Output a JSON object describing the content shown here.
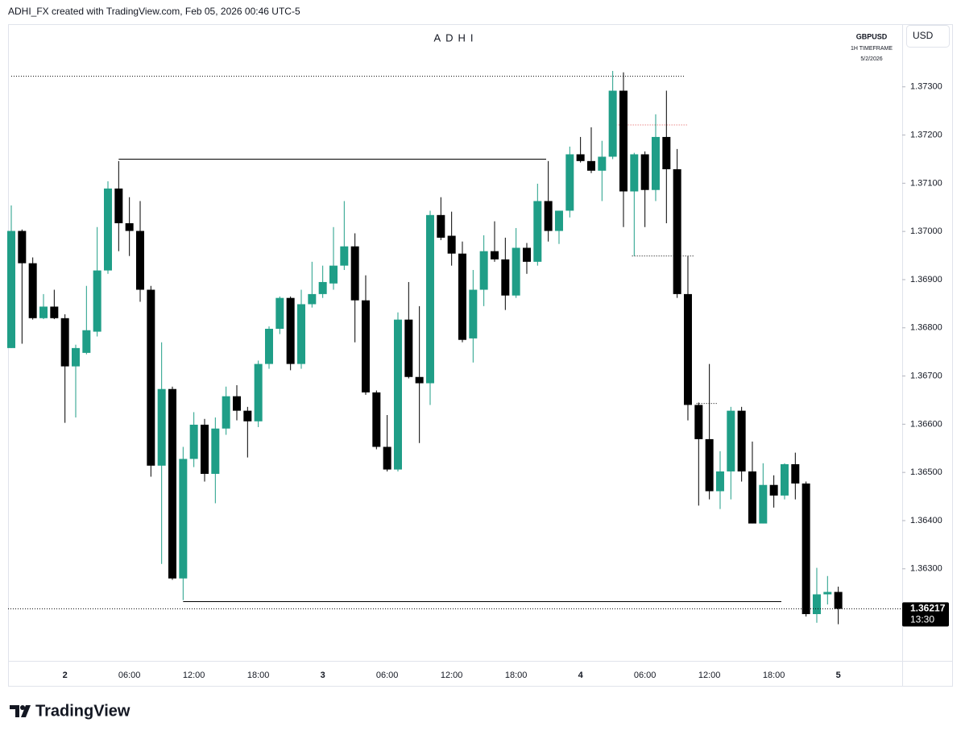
{
  "header": {
    "credit": "ADHI_FX created with TradingView.com, Feb 05, 2026 00:46 UTC-5"
  },
  "footer": {
    "logo": "TradingView"
  },
  "chart_data": {
    "type": "candlestick",
    "title": "ADHI",
    "symbol": "GBPUSD",
    "timeframe": "1H TIMEFRAME",
    "date": "5/2/2026",
    "currency": "USD",
    "countdown": "13:30",
    "up_color": "#1f9e87",
    "down_color": "#000000",
    "categories": [
      null,
      null,
      null,
      null,
      null,
      "2",
      null,
      null,
      null,
      null,
      null,
      "06:00",
      null,
      null,
      null,
      null,
      null,
      "12:00",
      null,
      null,
      null,
      null,
      null,
      "18:00",
      null,
      null,
      null,
      null,
      null,
      "3",
      null,
      null,
      null,
      null,
      null,
      "06:00",
      null,
      null,
      null,
      null,
      null,
      "12:00",
      null,
      null,
      null,
      null,
      null,
      "18:00",
      null,
      null,
      null,
      null,
      null,
      "4",
      null,
      null,
      null,
      null,
      null,
      "06:00",
      null,
      null,
      null,
      null,
      null,
      "12:00",
      null,
      null,
      null,
      null,
      null,
      "18:00",
      null,
      null,
      null,
      null,
      null,
      "5"
    ],
    "open": [
      1.36758,
      1.37001,
      1.36934,
      1.3682,
      1.36844,
      1.3682,
      1.3672,
      1.36748,
      1.36792,
      1.36919,
      1.37089,
      1.37017,
      1.37001,
      1.36879,
      1.36514,
      1.36673,
      1.3628,
      1.36528,
      1.36599,
      1.36497,
      1.36591,
      1.36658,
      1.36628,
      1.36606,
      1.36725,
      1.36798,
      1.36862,
      1.36725,
      1.36849,
      1.3687,
      1.36892,
      1.36929,
      1.36969,
      1.36857,
      1.36666,
      1.36553,
      1.36506,
      1.36817,
      1.36698,
      1.36685,
      1.37034,
      1.36991,
      1.36954,
      1.36778,
      1.36879,
      1.36959,
      1.36942,
      1.36867,
      1.36966,
      1.36937,
      1.37063,
      1.37001,
      1.37043,
      1.3716,
      1.37146,
      1.37126,
      1.37155,
      1.37292,
      1.37083,
      1.3716,
      1.37086,
      1.37196,
      1.37129,
      1.3687,
      1.3664,
      1.36569,
      1.36461,
      1.36502,
      1.36628,
      1.36502,
      1.36394,
      1.36474,
      1.36452,
      1.36517,
      1.36477,
      1.36206,
      1.36247,
      1.36252
    ],
    "high": [
      1.37054,
      1.37004,
      1.36946,
      1.3687,
      1.36879,
      1.36828,
      1.36765,
      1.36887,
      1.37009,
      1.37104,
      1.37146,
      1.37071,
      1.37063,
      1.36887,
      1.3677,
      1.36678,
      1.36553,
      1.36625,
      1.36611,
      1.36614,
      1.36678,
      1.36681,
      1.36636,
      1.36732,
      1.36803,
      1.36865,
      1.36865,
      1.36879,
      1.36937,
      1.36929,
      1.37009,
      1.37063,
      1.36996,
      1.36909,
      1.3667,
      1.36619,
      1.36832,
      1.36895,
      1.36845,
      1.37043,
      1.37071,
      1.37041,
      1.36979,
      1.3692,
      1.36992,
      1.37021,
      1.36987,
      1.37007,
      1.36976,
      1.37099,
      1.37146,
      1.37043,
      1.37176,
      1.37196,
      1.37216,
      1.37188,
      1.37333,
      1.3733,
      1.37163,
      1.37166,
      1.37243,
      1.37292,
      1.37171,
      1.36949,
      1.36645,
      1.36725,
      1.36544,
      1.36636,
      1.36636,
      1.36564,
      1.36519,
      1.36494,
      1.36519,
      1.36541,
      1.36481,
      1.36302,
      1.36285,
      1.36263
    ],
    "low": [
      1.36758,
      1.36767,
      1.36817,
      1.36818,
      1.36818,
      1.36603,
      1.36614,
      1.36745,
      1.36782,
      1.36912,
      1.36959,
      1.36949,
      1.36854,
      1.36491,
      1.3631,
      1.36277,
      1.36235,
      1.36511,
      1.36481,
      1.36436,
      1.36578,
      1.36608,
      1.36531,
      1.36594,
      1.36715,
      1.36787,
      1.36712,
      1.36715,
      1.36842,
      1.36862,
      1.36879,
      1.3692,
      1.3677,
      1.36661,
      1.36548,
      1.36502,
      1.36502,
      1.36695,
      1.36561,
      1.3664,
      1.36982,
      1.36929,
      1.3677,
      1.36728,
      1.36845,
      1.36937,
      1.36837,
      1.36862,
      1.36912,
      1.36929,
      1.36979,
      1.36974,
      1.37029,
      1.37143,
      1.37121,
      1.37063,
      1.3715,
      1.37009,
      1.36949,
      1.37009,
      1.37063,
      1.37017,
      1.36862,
      1.36608,
      1.36431,
      1.36444,
      1.36424,
      1.36444,
      1.36481,
      1.36394,
      1.36394,
      1.36427,
      1.36444,
      1.36444,
      1.36201,
      1.36188,
      1.36226,
      1.36185
    ],
    "close": [
      1.37001,
      1.36934,
      1.3682,
      1.36844,
      1.3682,
      1.3672,
      1.36758,
      1.36795,
      1.36919,
      1.37089,
      1.37017,
      1.37001,
      1.36879,
      1.36514,
      1.36673,
      1.3628,
      1.36528,
      1.36599,
      1.36497,
      1.36591,
      1.36658,
      1.36628,
      1.36606,
      1.36725,
      1.36798,
      1.36862,
      1.36725,
      1.36849,
      1.3687,
      1.36895,
      1.36929,
      1.36969,
      1.36857,
      1.36666,
      1.36553,
      1.36506,
      1.36817,
      1.36698,
      1.36685,
      1.37034,
      1.36987,
      1.36954,
      1.36775,
      1.36879,
      1.36959,
      1.36942,
      1.36867,
      1.36966,
      1.36937,
      1.37063,
      1.37001,
      1.37043,
      1.3716,
      1.37146,
      1.37126,
      1.37155,
      1.37292,
      1.37083,
      1.3716,
      1.37086,
      1.37196,
      1.37129,
      1.3687,
      1.3664,
      1.36569,
      1.36461,
      1.36502,
      1.36628,
      1.36502,
      1.36394,
      1.36474,
      1.36452,
      1.36517,
      1.36477,
      1.36206,
      1.36247,
      1.36252,
      1.36217
    ],
    "levels": [
      {
        "value": 1.37322,
        "from": 0,
        "to": 62.7,
        "style": "dotted",
        "color": "#000000"
      },
      {
        "value": 1.3715,
        "from": 10,
        "to": 49.8,
        "style": "solid",
        "color": "#000000"
      },
      {
        "value": 1.36232,
        "from": 16,
        "to": 71.7,
        "style": "solid",
        "color": "#000000"
      },
      {
        "value": 1.37221,
        "from": 56.3,
        "to": 62.9,
        "style": "dotted",
        "color": "#e05050"
      },
      {
        "value": 1.36949,
        "from": 57.8,
        "to": 63.6,
        "style": "dotted",
        "color": "#000000"
      },
      {
        "value": 1.36643,
        "from": 63.8,
        "to": 65.7,
        "style": "dotted",
        "color": "#000000"
      }
    ],
    "ylim": [
      1.36109,
      1.3743
    ],
    "yticks": [
      {
        "value": 1.363,
        "label": "1.36300"
      },
      {
        "value": 1.364,
        "label": "1.36400"
      },
      {
        "value": 1.365,
        "label": "1.36500"
      },
      {
        "value": 1.366,
        "label": "1.36600"
      },
      {
        "value": 1.367,
        "label": "1.36700"
      },
      {
        "value": 1.368,
        "label": "1.36800"
      },
      {
        "value": 1.369,
        "label": "1.36900"
      },
      {
        "value": 1.37,
        "label": "1.37000"
      },
      {
        "value": 1.371,
        "label": "1.37100"
      },
      {
        "value": 1.372,
        "label": "1.37200"
      },
      {
        "value": 1.373,
        "label": "1.37300"
      }
    ]
  }
}
